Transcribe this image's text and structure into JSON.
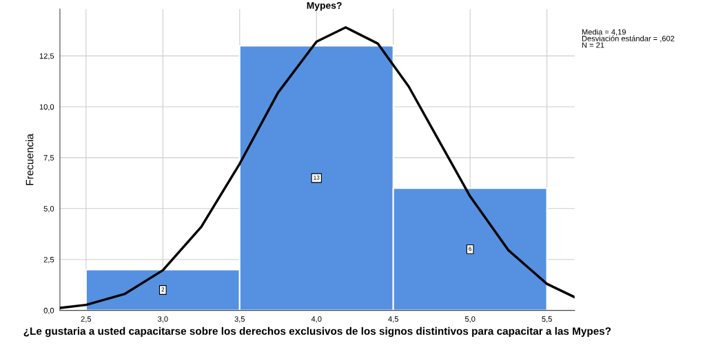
{
  "chart_data": {
    "type": "histogram",
    "title": "Mypes?",
    "xlabel": "¿Le gustaria a usted capacitarse sobre los derechos exclusivos de los signos distintivos para capacitar a las Mypes?",
    "ylabel": "Frecuencia",
    "annotations": [
      "Media = 4,19\nDesviación estándar = ,602\nN = 21"
    ],
    "bins": [
      2.5,
      3.5,
      4.5,
      5.5
    ],
    "series": [
      {
        "color": "#5591e0",
        "values": [
          2,
          13,
          6
        ],
        "value_labels": [
          "2",
          "13",
          "6"
        ]
      },
      {
        "type": "line",
        "color": "#000000",
        "x": [
          2.33,
          2.5,
          2.75,
          3.0,
          3.25,
          3.5,
          3.75,
          4.0,
          4.19,
          4.4,
          4.6,
          4.8,
          5.0,
          5.25,
          5.5,
          5.68
        ],
        "values": [
          0.12,
          0.27,
          0.8,
          1.97,
          4.1,
          7.2,
          10.7,
          13.2,
          13.9,
          13.1,
          11.0,
          8.3,
          5.6,
          2.95,
          1.3,
          0.65
        ]
      }
    ],
    "xlim": [
      2.33,
      5.68
    ],
    "xticks": [
      {
        "value": 2.5,
        "label": "2,5"
      },
      {
        "value": 3.0,
        "label": "3,0"
      },
      {
        "value": 3.5,
        "label": "3,5"
      },
      {
        "value": 4.0,
        "label": "4,0"
      },
      {
        "value": 4.5,
        "label": "4,5"
      },
      {
        "value": 5.0,
        "label": "5,0"
      },
      {
        "value": 5.5,
        "label": "5,5"
      }
    ],
    "ylim": [
      0,
      14.8
    ],
    "yticks": [
      {
        "value": 0,
        "label": "0,0"
      },
      {
        "value": 2.5,
        "label": "2,5"
      },
      {
        "value": 5,
        "label": "5,0"
      },
      {
        "value": 7.5,
        "label": "7,5"
      },
      {
        "value": 10,
        "label": "10,0"
      },
      {
        "value": 12.5,
        "label": "12,5"
      }
    ],
    "grid": true,
    "legend": false,
    "marker": "none",
    "line_style": "solid"
  }
}
